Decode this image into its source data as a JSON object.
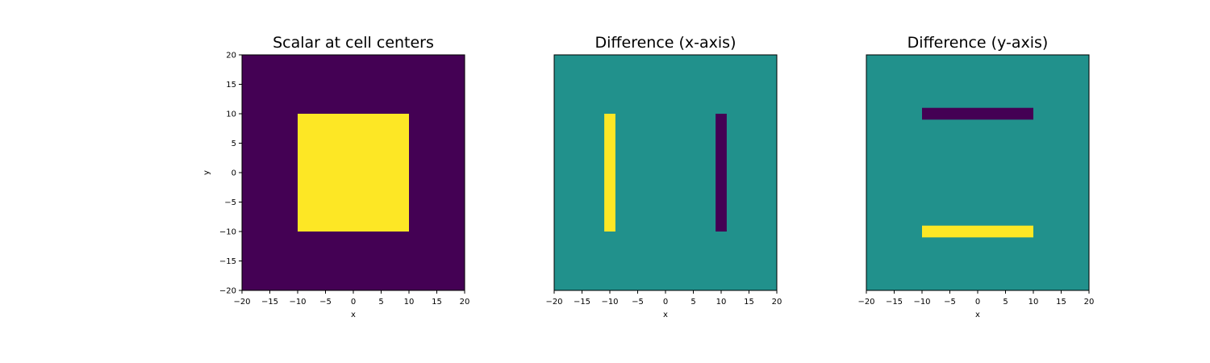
{
  "figure": {
    "background": "#ffffff"
  },
  "colors": {
    "low": "#440154",
    "mid": "#21918c",
    "high": "#fde725",
    "frame": "#000000"
  },
  "chart_data": [
    {
      "type": "heatmap",
      "title": "Scalar at cell centers",
      "xlabel": "x",
      "ylabel": "y",
      "xlim": [
        -20,
        20
      ],
      "ylim": [
        -20,
        20
      ],
      "xticks": [
        -20,
        -15,
        -10,
        -5,
        0,
        5,
        10,
        15,
        20
      ],
      "yticks": [
        -20,
        -15,
        -10,
        -5,
        0,
        5,
        10,
        15,
        20
      ],
      "show_yticks": true,
      "background": "low",
      "regions": [
        {
          "x": [
            -10,
            10
          ],
          "y": [
            -10,
            10
          ],
          "color": "high"
        }
      ]
    },
    {
      "type": "heatmap",
      "title": "Difference (x-axis)",
      "xlabel": "x",
      "ylabel": "",
      "xlim": [
        -20,
        20
      ],
      "ylim": [
        -20,
        20
      ],
      "xticks": [
        -20,
        -15,
        -10,
        -5,
        0,
        5,
        10,
        15,
        20
      ],
      "yticks": [],
      "show_yticks": false,
      "background": "mid",
      "regions": [
        {
          "x": [
            -11,
            -9
          ],
          "y": [
            -10,
            10
          ],
          "color": "high"
        },
        {
          "x": [
            9,
            11
          ],
          "y": [
            -10,
            10
          ],
          "color": "low"
        }
      ]
    },
    {
      "type": "heatmap",
      "title": "Difference (y-axis)",
      "xlabel": "x",
      "ylabel": "",
      "xlim": [
        -20,
        20
      ],
      "ylim": [
        -20,
        20
      ],
      "xticks": [
        -20,
        -15,
        -10,
        -5,
        0,
        5,
        10,
        15,
        20
      ],
      "yticks": [],
      "show_yticks": false,
      "background": "mid",
      "regions": [
        {
          "x": [
            -10,
            10
          ],
          "y": [
            9,
            11
          ],
          "color": "low"
        },
        {
          "x": [
            -10,
            10
          ],
          "y": [
            -11,
            -9
          ],
          "color": "high"
        }
      ]
    }
  ]
}
